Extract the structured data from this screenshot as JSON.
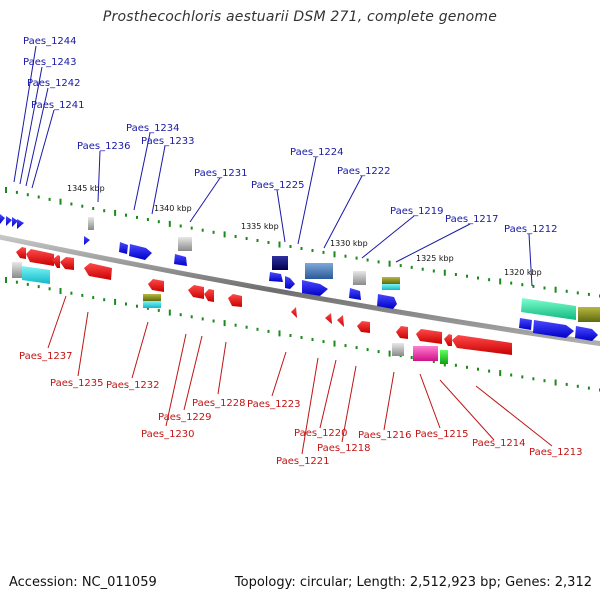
{
  "title": "Prosthecochloris aestuarii DSM 271, complete genome",
  "footer": {
    "accession": "Accession: NC_011059",
    "summary": "Topology: circular; Length: 2,512,923 bp; Genes: 2,312"
  },
  "scale_labels": [
    "1345 kbp",
    "1340 kbp",
    "1335 kbp",
    "1330 kbp",
    "1325 kbp",
    "1320 kbp"
  ],
  "top_genes": [
    "Paes_1244",
    "Paes_1243",
    "Paes_1242",
    "Paes_1241",
    "Paes_1236",
    "Paes_1234",
    "Paes_1233",
    "Paes_1231",
    "Paes_1225",
    "Paes_1224",
    "Paes_1222",
    "Paes_1219",
    "Paes_1217",
    "Paes_1212"
  ],
  "bottom_genes": [
    "Paes_1237",
    "Paes_1235",
    "Paes_1232",
    "Paes_1230",
    "Paes_1229",
    "Paes_1228",
    "Paes_1223",
    "Paes_1221",
    "Paes_1220",
    "Paes_1218",
    "Paes_1216",
    "Paes_1215",
    "Paes_1214",
    "Paes_1213"
  ],
  "colors": {
    "forward_strand": "#1010e0",
    "reverse_strand": "#e01010",
    "top_label": "#1a1aa6",
    "bottom_label": "#c01515",
    "backbone": "#8a8a8a",
    "tick": "#1a8a1a"
  }
}
